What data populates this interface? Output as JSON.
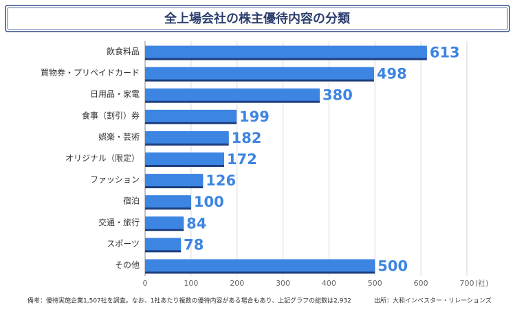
{
  "chart_data": {
    "type": "bar",
    "orientation": "horizontal",
    "title": "全上場会社の株主優待内容の分類",
    "categories": [
      "飲食料品",
      "買物券・プリペイドカード",
      "日用品・家電",
      "食事（割引）券",
      "娯楽・芸術",
      "オリジナル（限定）",
      "ファッション",
      "宿泊",
      "交通・旅行",
      "スポーツ",
      "その他"
    ],
    "values": [
      613,
      498,
      380,
      199,
      182,
      172,
      126,
      100,
      84,
      78,
      500
    ],
    "color": "#3d85e3",
    "xlim": [
      0,
      700
    ],
    "xticks": [
      0,
      100,
      200,
      300,
      400,
      500,
      600,
      700
    ],
    "x_unit": "(社)",
    "grid": true,
    "note": "備考：優待実施企業1,507社を調査。なお、1社あたり複数の優待内容がある場合もあり、上記グラフの総数は2,932",
    "source": "出所：大和インベスター・リレーションズ"
  }
}
